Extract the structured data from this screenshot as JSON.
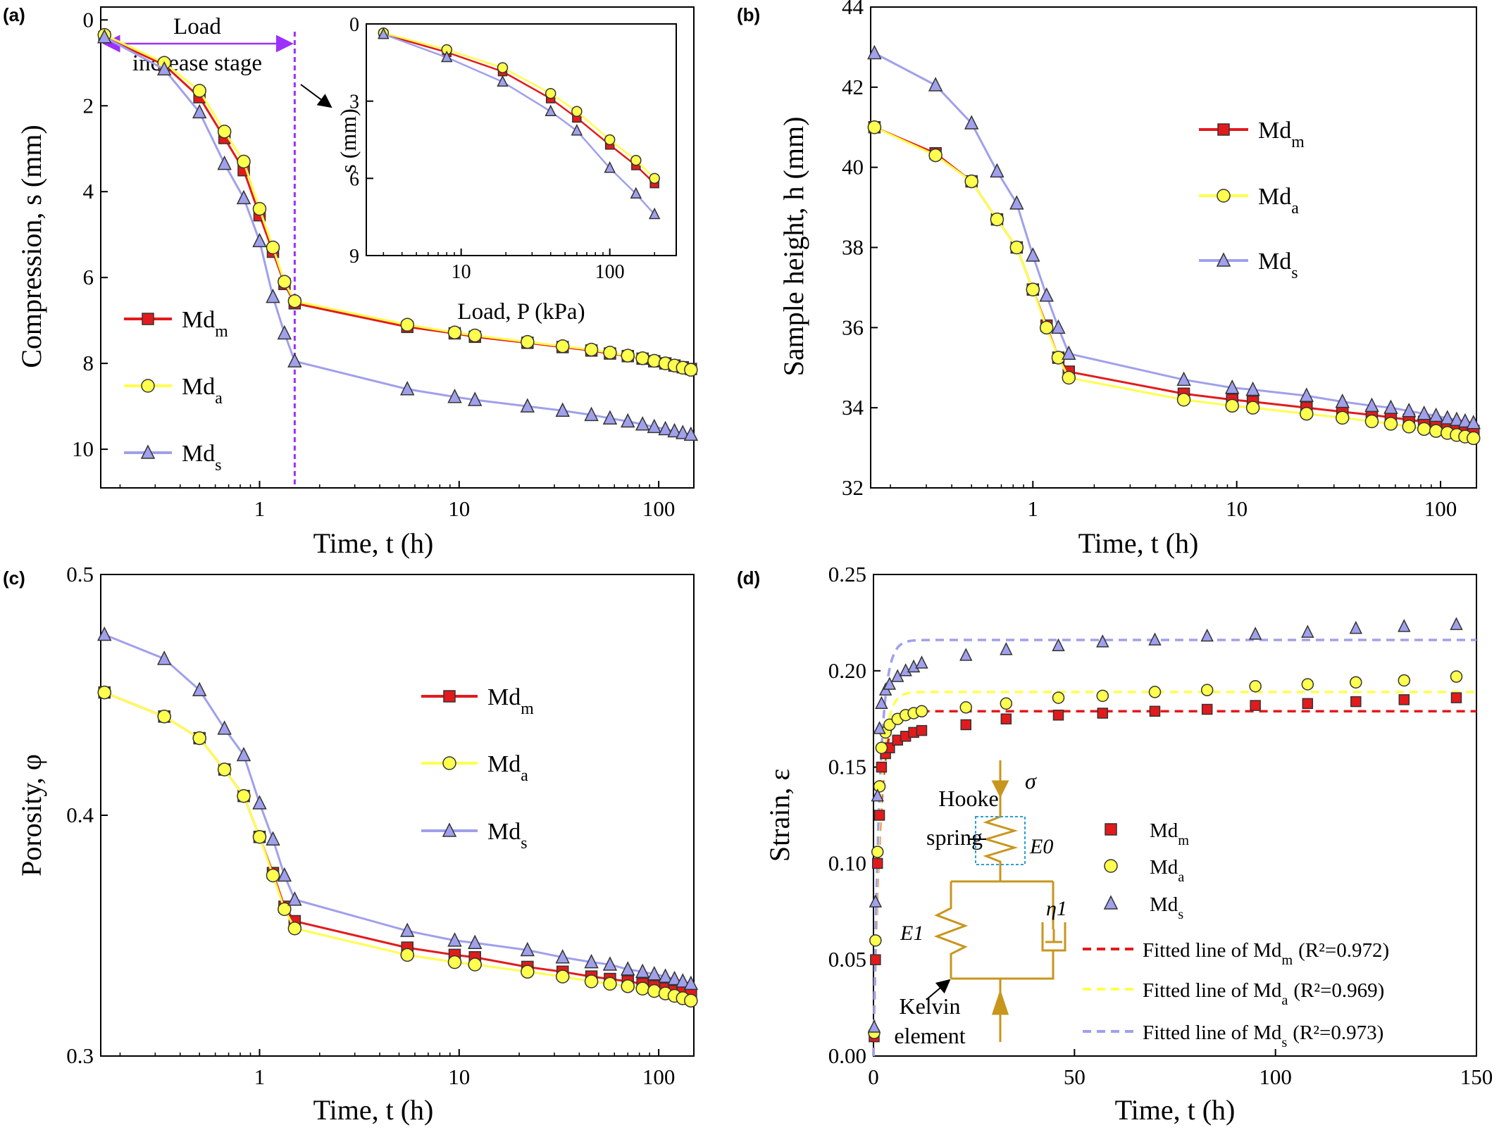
{
  "colors": {
    "Md_m": "#e31a1c",
    "Md_a": "#ffff4d",
    "Md_s": "#a0a0ec",
    "model": "#c8961c",
    "load_line": "#9b30ff"
  },
  "panels": [
    {
      "id": "a",
      "label": "(a)"
    },
    {
      "id": "b",
      "label": "(b)"
    },
    {
      "id": "c",
      "label": "(c)"
    },
    {
      "id": "d",
      "label": "(d)"
    }
  ],
  "legend": {
    "Md_m": "Md",
    "Md_m_sub": "m",
    "Md_a": "Md",
    "Md_a_sub": "a",
    "Md_s": "Md",
    "Md_s_sub": "s",
    "fit_prefix": "Fitted line of Md",
    "fit_m": "(R²=0.972)",
    "fit_a": "(R²=0.969)",
    "fit_s": "(R²=0.973)"
  },
  "annotations": {
    "load_line1": "Load",
    "load_line2": "increase stage",
    "hooke1": "Hooke",
    "hooke2": "spring",
    "kelvin1": "Kelvin",
    "kelvin2": "element",
    "sigma": "σ",
    "E0": "E0",
    "E1": "E1",
    "eta1": "η1"
  },
  "chart_data": [
    {
      "panel": "a",
      "type": "line",
      "xlabel": "Time, t (h)",
      "ylabel": "Compression, s (mm)",
      "xscale": "log",
      "xlim": [
        0.16,
        150
      ],
      "ylim": [
        10.9,
        -0.3
      ],
      "y_inverted": true,
      "xticks": [
        1,
        10,
        100
      ],
      "xtick_labels": [
        "1",
        "10",
        "100"
      ],
      "yticks": [
        0,
        2,
        4,
        6,
        8,
        10
      ],
      "ytick_labels": [
        "0",
        "2",
        "4",
        "6",
        "8",
        "10"
      ],
      "legend": "left-center",
      "load_stage_end": 1.5,
      "series": [
        {
          "name": "Md_m",
          "marker": "square",
          "x": [
            0.167,
            0.333,
            0.5,
            0.667,
            0.833,
            1.0,
            1.167,
            1.333,
            1.5,
            5.5,
            9.5,
            12,
            22,
            33,
            46,
            57,
            70,
            83,
            95,
            108,
            120,
            132,
            145
          ],
          "y": [
            0.4,
            1.05,
            1.8,
            2.75,
            3.5,
            4.55,
            5.4,
            6.15,
            6.6,
            7.15,
            7.3,
            7.38,
            7.52,
            7.62,
            7.7,
            7.77,
            7.83,
            7.89,
            7.95,
            8.0,
            8.05,
            8.09,
            8.13
          ]
        },
        {
          "name": "Md_a",
          "marker": "circle",
          "x": [
            0.167,
            0.333,
            0.5,
            0.667,
            0.833,
            1.0,
            1.167,
            1.333,
            1.5,
            5.5,
            9.5,
            12,
            22,
            33,
            46,
            57,
            70,
            83,
            95,
            108,
            120,
            132,
            145
          ],
          "y": [
            0.35,
            1.0,
            1.65,
            2.6,
            3.3,
            4.4,
            5.3,
            6.1,
            6.55,
            7.1,
            7.28,
            7.35,
            7.5,
            7.6,
            7.68,
            7.75,
            7.82,
            7.88,
            7.94,
            8.0,
            8.05,
            8.1,
            8.15
          ]
        },
        {
          "name": "Md_s",
          "marker": "triangle",
          "x": [
            0.167,
            0.333,
            0.5,
            0.667,
            0.833,
            1.0,
            1.167,
            1.333,
            1.5,
            5.5,
            9.5,
            12,
            22,
            33,
            46,
            57,
            70,
            83,
            95,
            108,
            120,
            132,
            145
          ],
          "y": [
            0.4,
            1.15,
            2.15,
            3.35,
            4.15,
            5.15,
            6.45,
            7.3,
            7.95,
            8.6,
            8.78,
            8.85,
            9.0,
            9.1,
            9.2,
            9.28,
            9.35,
            9.42,
            9.48,
            9.53,
            9.58,
            9.62,
            9.66
          ]
        }
      ]
    },
    {
      "panel": "a-inset",
      "type": "line",
      "xlabel": "Load, P (kPa)",
      "ylabel": "s (mm)",
      "xscale": "log",
      "xlim": [
        2.3,
        280
      ],
      "ylim": [
        9,
        0
      ],
      "y_inverted": true,
      "xticks": [
        10,
        100
      ],
      "xtick_labels": [
        "10",
        "100"
      ],
      "yticks": [
        0,
        3,
        6,
        9
      ],
      "ytick_labels": [
        "0",
        "3",
        "6",
        "9"
      ],
      "series": [
        {
          "name": "Md_m",
          "marker": "square",
          "x": [
            3,
            8,
            19,
            40,
            60,
            100,
            150,
            200
          ],
          "y": [
            0.4,
            1.1,
            1.85,
            2.9,
            3.65,
            4.7,
            5.5,
            6.2
          ]
        },
        {
          "name": "Md_a",
          "marker": "circle",
          "x": [
            3,
            8,
            19,
            40,
            60,
            100,
            150,
            200
          ],
          "y": [
            0.35,
            1.0,
            1.7,
            2.7,
            3.4,
            4.5,
            5.3,
            6.0
          ]
        },
        {
          "name": "Md_s",
          "marker": "triangle",
          "x": [
            3,
            8,
            19,
            40,
            60,
            100,
            150,
            200
          ],
          "y": [
            0.4,
            1.3,
            2.25,
            3.4,
            4.15,
            5.6,
            6.6,
            7.4
          ]
        }
      ]
    },
    {
      "panel": "b",
      "type": "line",
      "xlabel": "Time, t (h)",
      "ylabel": "Sample height, h (mm)",
      "xscale": "log",
      "xlim": [
        0.16,
        150
      ],
      "ylim": [
        32,
        44
      ],
      "xticks": [
        1,
        10,
        100
      ],
      "xtick_labels": [
        "1",
        "10",
        "100"
      ],
      "yticks": [
        32,
        34,
        36,
        38,
        40,
        42,
        44
      ],
      "ytick_labels": [
        "32",
        "34",
        "36",
        "38",
        "40",
        "42",
        "44"
      ],
      "legend": "upper-right",
      "series": [
        {
          "name": "Md_m",
          "marker": "square",
          "x": [
            0.167,
            0.333,
            0.5,
            0.667,
            0.833,
            1.0,
            1.167,
            1.333,
            1.5,
            5.5,
            9.5,
            12,
            22,
            33,
            46,
            57,
            70,
            83,
            95,
            108,
            120,
            132,
            145
          ],
          "y": [
            41.0,
            40.35,
            39.65,
            38.7,
            38.0,
            36.95,
            36.05,
            35.25,
            34.9,
            34.35,
            34.2,
            34.15,
            34.0,
            33.9,
            33.82,
            33.76,
            33.7,
            33.65,
            33.6,
            33.55,
            33.5,
            33.46,
            33.42
          ]
        },
        {
          "name": "Md_a",
          "marker": "circle",
          "x": [
            0.167,
            0.333,
            0.5,
            0.667,
            0.833,
            1.0,
            1.167,
            1.333,
            1.5,
            5.5,
            9.5,
            12,
            22,
            33,
            46,
            57,
            70,
            83,
            95,
            108,
            120,
            132,
            145
          ],
          "y": [
            41.0,
            40.3,
            39.65,
            38.7,
            38.0,
            36.95,
            36.0,
            35.25,
            34.75,
            34.2,
            34.05,
            34.0,
            33.85,
            33.75,
            33.66,
            33.6,
            33.53,
            33.47,
            33.42,
            33.37,
            33.32,
            33.28,
            33.24
          ]
        },
        {
          "name": "Md_s",
          "marker": "triangle",
          "x": [
            0.167,
            0.333,
            0.5,
            0.667,
            0.833,
            1.0,
            1.167,
            1.333,
            1.5,
            5.5,
            9.5,
            12,
            22,
            33,
            46,
            57,
            70,
            83,
            95,
            108,
            120,
            132,
            145
          ],
          "y": [
            42.85,
            42.05,
            41.1,
            39.9,
            39.1,
            37.8,
            36.8,
            36.0,
            35.35,
            34.7,
            34.5,
            34.45,
            34.3,
            34.15,
            34.05,
            34.0,
            33.92,
            33.85,
            33.8,
            33.74,
            33.7,
            33.66,
            33.62
          ]
        }
      ]
    },
    {
      "panel": "c",
      "type": "line",
      "xlabel": "Time, t (h)",
      "ylabel": "Porosity, φ",
      "xscale": "log",
      "xlim": [
        0.16,
        150
      ],
      "ylim": [
        0.3,
        0.5
      ],
      "xticks": [
        1,
        10,
        100
      ],
      "xtick_labels": [
        "1",
        "10",
        "100"
      ],
      "yticks": [
        0.3,
        0.4,
        0.5
      ],
      "ytick_labels": [
        "0.3",
        "0.4",
        "0.5"
      ],
      "legend": "upper-right",
      "series": [
        {
          "name": "Md_m",
          "marker": "square",
          "x": [
            0.167,
            0.333,
            0.5,
            0.667,
            0.833,
            1.0,
            1.167,
            1.333,
            1.5,
            5.5,
            9.5,
            12,
            22,
            33,
            46,
            57,
            70,
            83,
            95,
            108,
            120,
            132,
            145
          ],
          "y": [
            0.451,
            0.441,
            0.432,
            0.419,
            0.408,
            0.391,
            0.376,
            0.362,
            0.356,
            0.345,
            0.342,
            0.341,
            0.337,
            0.335,
            0.333,
            0.332,
            0.331,
            0.33,
            0.329,
            0.328,
            0.327,
            0.327,
            0.326
          ]
        },
        {
          "name": "Md_a",
          "marker": "circle",
          "x": [
            0.167,
            0.333,
            0.5,
            0.667,
            0.833,
            1.0,
            1.167,
            1.333,
            1.5,
            5.5,
            9.5,
            12,
            22,
            33,
            46,
            57,
            70,
            83,
            95,
            108,
            120,
            132,
            145
          ],
          "y": [
            0.451,
            0.441,
            0.432,
            0.419,
            0.408,
            0.391,
            0.375,
            0.361,
            0.353,
            0.342,
            0.339,
            0.338,
            0.335,
            0.333,
            0.331,
            0.33,
            0.329,
            0.328,
            0.327,
            0.326,
            0.325,
            0.324,
            0.323
          ]
        },
        {
          "name": "Md_s",
          "marker": "triangle",
          "x": [
            0.167,
            0.333,
            0.5,
            0.667,
            0.833,
            1.0,
            1.167,
            1.333,
            1.5,
            5.5,
            9.5,
            12,
            22,
            33,
            46,
            57,
            70,
            83,
            95,
            108,
            120,
            132,
            145
          ],
          "y": [
            0.475,
            0.465,
            0.452,
            0.436,
            0.425,
            0.405,
            0.39,
            0.375,
            0.365,
            0.352,
            0.348,
            0.347,
            0.344,
            0.341,
            0.339,
            0.338,
            0.336,
            0.335,
            0.334,
            0.333,
            0.332,
            0.331,
            0.33
          ]
        }
      ]
    },
    {
      "panel": "d",
      "type": "scatter",
      "xlabel": "Time, t (h)",
      "ylabel": "Strain, ε",
      "xscale": "linear",
      "xlim": [
        0,
        150
      ],
      "ylim": [
        0,
        0.25
      ],
      "xticks": [
        0,
        50,
        100,
        150
      ],
      "xtick_labels": [
        "0",
        "50",
        "100",
        "150"
      ],
      "yticks": [
        0,
        0.05,
        0.1,
        0.15,
        0.2,
        0.25
      ],
      "ytick_labels": [
        "0.00",
        "0.05",
        "0.10",
        "0.15",
        "0.20",
        "0.25"
      ],
      "legend": "right",
      "series": [
        {
          "name": "Md_m",
          "marker": "square",
          "x": [
            0.17,
            0.5,
            1,
            1.5,
            2,
            3,
            4,
            6,
            8,
            10,
            12,
            23,
            33,
            46,
            57,
            70,
            83,
            95,
            108,
            120,
            132,
            145
          ],
          "y": [
            0.01,
            0.05,
            0.1,
            0.125,
            0.15,
            0.157,
            0.16,
            0.164,
            0.166,
            0.168,
            0.169,
            0.172,
            0.175,
            0.177,
            0.178,
            0.179,
            0.18,
            0.182,
            0.183,
            0.184,
            0.185,
            0.186
          ]
        },
        {
          "name": "Md_a",
          "marker": "circle",
          "x": [
            0.17,
            0.5,
            1,
            1.5,
            2,
            3,
            4,
            6,
            8,
            10,
            12,
            23,
            33,
            46,
            57,
            70,
            83,
            95,
            108,
            120,
            132,
            145
          ],
          "y": [
            0.012,
            0.06,
            0.106,
            0.14,
            0.16,
            0.168,
            0.172,
            0.175,
            0.177,
            0.178,
            0.179,
            0.181,
            0.183,
            0.186,
            0.187,
            0.189,
            0.19,
            0.192,
            0.193,
            0.194,
            0.195,
            0.197
          ]
        },
        {
          "name": "Md_s",
          "marker": "triangle",
          "x": [
            0.17,
            0.5,
            1,
            1.5,
            2,
            3,
            4,
            6,
            8,
            10,
            12,
            23,
            33,
            46,
            57,
            70,
            83,
            95,
            108,
            120,
            132,
            145
          ],
          "y": [
            0.015,
            0.08,
            0.135,
            0.17,
            0.183,
            0.19,
            0.193,
            0.197,
            0.2,
            0.202,
            0.204,
            0.208,
            0.211,
            0.213,
            0.215,
            0.216,
            0.218,
            0.219,
            0.22,
            0.222,
            0.223,
            0.224
          ]
        }
      ],
      "fits": [
        {
          "name": "Md_m",
          "plateau": 0.179,
          "rise_h": 1.5
        },
        {
          "name": "Md_a",
          "plateau": 0.189,
          "rise_h": 1.5
        },
        {
          "name": "Md_s",
          "plateau": 0.216,
          "rise_h": 1.5
        }
      ]
    }
  ]
}
